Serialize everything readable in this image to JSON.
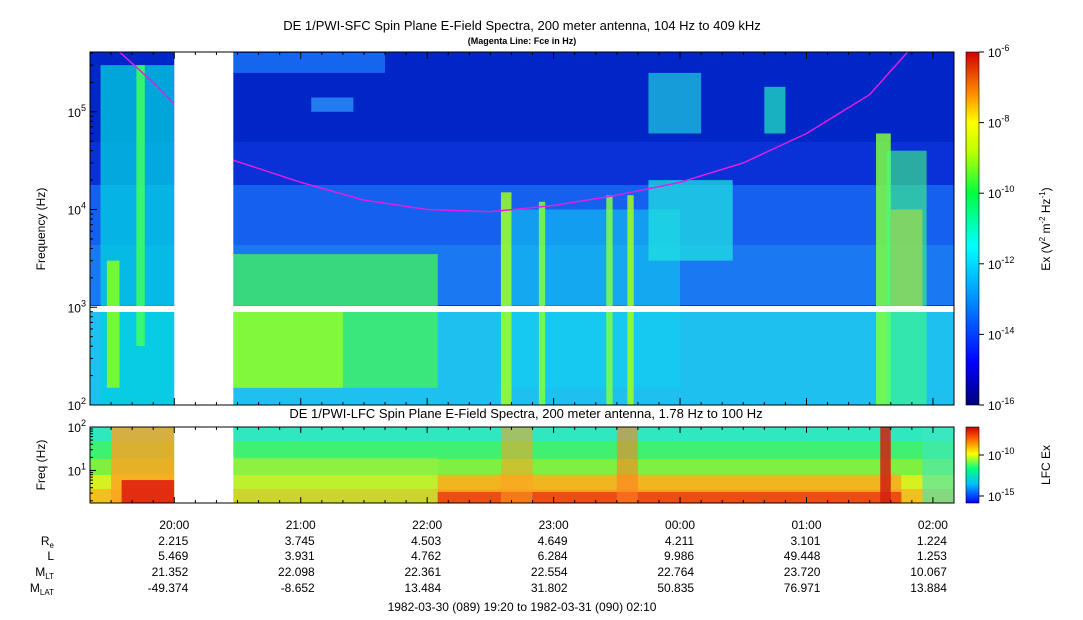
{
  "chart_data": [
    {
      "type": "heatmap",
      "title": "DE 1/PWI-SFC  Spin Plane E-Field Spectra, 200 meter antenna, 104 Hz to 409 kHz",
      "subtitle": "(Magenta Line: Fce in Hz)",
      "ylabel": "Frequency (Hz)",
      "yscale": "log",
      "ylim": [
        100,
        409000
      ],
      "yticks": [
        {
          "value": 100,
          "label": "10^2"
        },
        {
          "value": 1000,
          "label": "10^3"
        },
        {
          "value": 10000,
          "label": "10^4"
        },
        {
          "value": 100000,
          "label": "10^5"
        }
      ],
      "colorbar": {
        "label": "Ex (V^2 m^-2 Hz^-1)",
        "label_parts": {
          "base": "Ex (V",
          "p1": "2",
          "mid1": " m",
          "p2": "-2",
          "mid2": " Hz",
          "p3": "-1",
          "end": ")"
        },
        "scale": "log",
        "range": [
          1e-16,
          1e-06
        ],
        "ticks": [
          {
            "exp": "-6"
          },
          {
            "exp": "-8"
          },
          {
            "exp": "-10"
          },
          {
            "exp": "-12"
          },
          {
            "exp": "-14"
          },
          {
            "exp": "-16"
          }
        ]
      },
      "data_gap": [
        "20:00",
        "20:28"
      ],
      "fce_line": {
        "name": "Fce",
        "color": "#e020e0",
        "x": [
          "19:34",
          "19:50",
          "20:00",
          "20:28",
          "21:00",
          "21:30",
          "22:00",
          "22:30",
          "23:00",
          "23:30",
          "00:00",
          "00:30",
          "01:00",
          "01:30",
          "01:48"
        ],
        "y": [
          409000,
          200000,
          120000,
          32000,
          19000,
          12500,
          10000,
          9500,
          11000,
          14000,
          19000,
          30000,
          60000,
          150000,
          409000
        ]
      }
    },
    {
      "type": "heatmap",
      "title": "DE 1/PWI-LFC  Spin Plane E-Field Spectra, 200 meter antenna, 1.78 Hz to 100 Hz",
      "ylabel": "Freq (Hz)",
      "yscale": "log",
      "ylim": [
        1.78,
        100
      ],
      "yticks": [
        {
          "value": 10,
          "label": "10^1"
        },
        {
          "value": 100,
          "label": "10^2"
        }
      ],
      "colorbar": {
        "label": "LFC Ex",
        "scale": "log",
        "ticks": [
          {
            "exp": "-10"
          },
          {
            "exp": "-15"
          }
        ]
      },
      "data_gap": [
        "20:00",
        "20:28"
      ]
    }
  ],
  "x_axis": {
    "range": [
      "19:20",
      "02:10"
    ],
    "ticks": [
      "20:00",
      "21:00",
      "22:00",
      "23:00",
      "00:00",
      "01:00",
      "02:00"
    ]
  },
  "ephemeris": {
    "rows": [
      {
        "label": "R",
        "sub": "e",
        "values": [
          "2.215",
          "3.745",
          "4.503",
          "4.649",
          "4.211",
          "3.101",
          "1.224"
        ]
      },
      {
        "label": "L",
        "sub": "",
        "values": [
          "5.469",
          "3.931",
          "4.762",
          "6.284",
          "9.986",
          "49.448",
          "1.253"
        ]
      },
      {
        "label": "M",
        "sub": "LT",
        "values": [
          "21.352",
          "22.098",
          "22.361",
          "22.554",
          "22.764",
          "23.720",
          "10.067"
        ]
      },
      {
        "label": "M",
        "sub": "LAT",
        "values": [
          "-49.374",
          "-8.652",
          "13.484",
          "31.802",
          "50.835",
          "76.971",
          "13.884"
        ]
      }
    ]
  },
  "footer": "1982-03-30 (089) 19:20 to 1982-03-31 (090) 02:10"
}
